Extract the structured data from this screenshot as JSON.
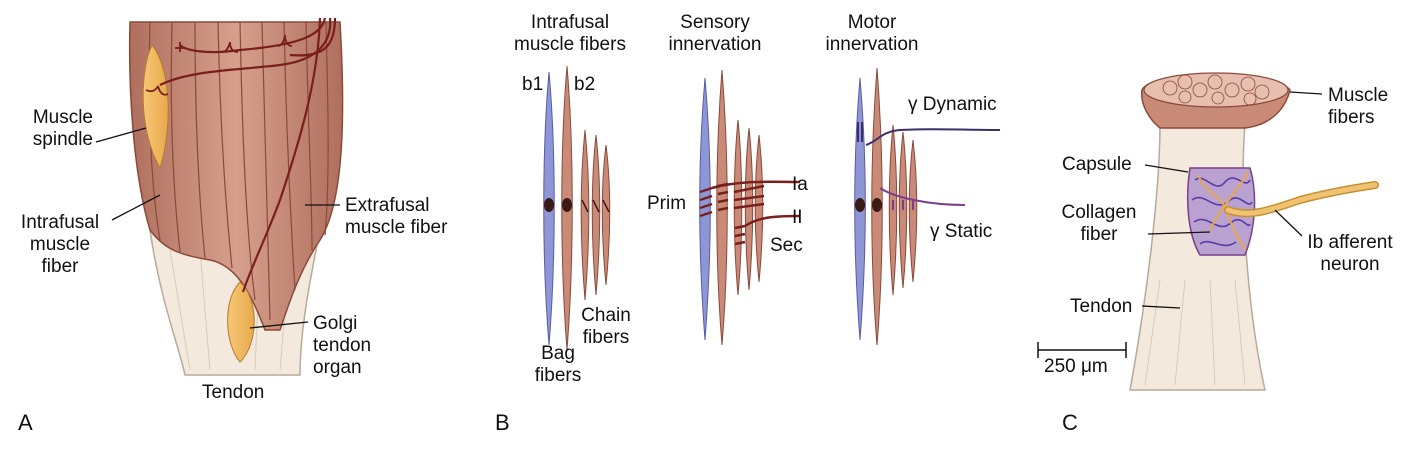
{
  "panels": [
    {
      "letter": "A",
      "labels": {
        "muscle_spindle": [
          "Muscle",
          "spindle"
        ],
        "intrafusal": [
          "Intrafusal",
          "muscle",
          "fiber"
        ],
        "extrafusal": [
          "Extrafusal",
          "muscle fiber"
        ],
        "golgi": [
          "Golgi",
          "tendon",
          "organ"
        ],
        "tendon": "Tendon"
      }
    },
    {
      "letter": "B",
      "headers": {
        "intrafusal": [
          "Intrafusal",
          "muscle fibers"
        ],
        "sensory": [
          "Sensory",
          "innervation"
        ],
        "motor": [
          "Motor",
          "innervation"
        ]
      },
      "labels": {
        "b1": "b1",
        "b2": "b2",
        "bag": [
          "Bag",
          "fibers"
        ],
        "chain": [
          "Chain",
          "fibers"
        ],
        "prim": "Prim",
        "ia": "Ia",
        "ii": "II",
        "sec": "Sec",
        "gamma_dynamic": "γ Dynamic",
        "gamma_static": "γ Static"
      }
    },
    {
      "letter": "C",
      "labels": {
        "muscle_fibers": [
          "Muscle",
          "fibers"
        ],
        "capsule": "Capsule",
        "collagen": [
          "Collagen",
          "fiber"
        ],
        "ib_afferent": [
          "Ib afferent",
          "neuron"
        ],
        "tendon": "Tendon",
        "scale": "250 μm"
      }
    }
  ],
  "colors": {
    "muscle": "#c98b78",
    "muscle_dark": "#8a4a3a",
    "nerve": "#7a1e1e",
    "bag_fiber": "#8f96d6",
    "spindle": "#f0b65c",
    "tendon": "#f3e9dc",
    "motor": "#3d2d6a",
    "static": "#7b3f8c",
    "collagen": "#5a3aa8"
  }
}
